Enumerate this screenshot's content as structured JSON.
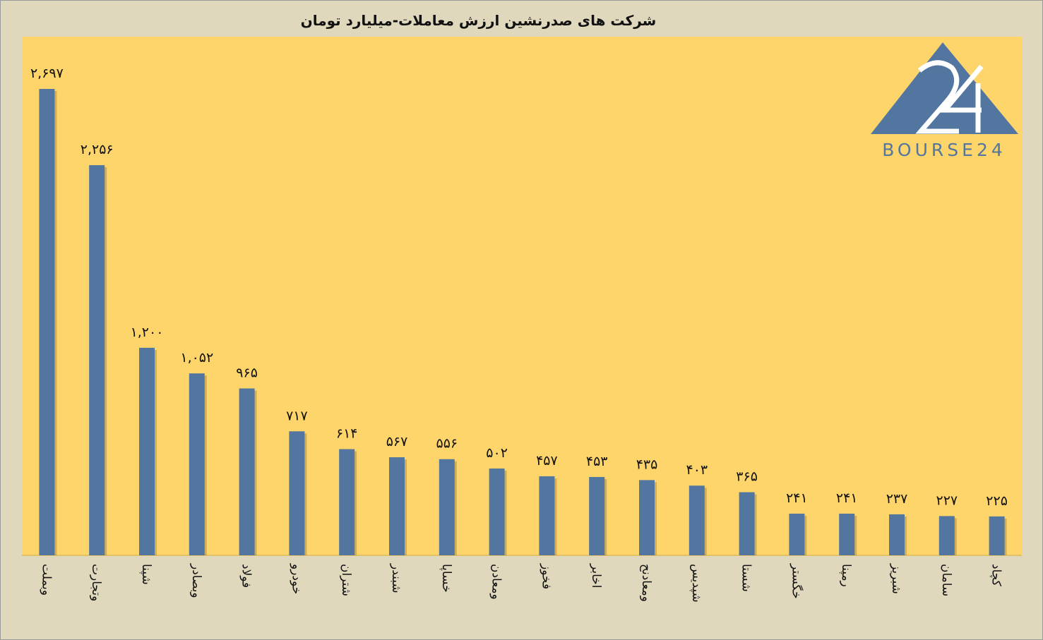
{
  "chart_data": {
    "type": "bar",
    "title": "شرکت های صدرنشین ارزش معاملات-میلیارد تومان",
    "categories": [
      "وبملت",
      "وتجارت",
      "شپنا",
      "وبصادر",
      "فولاد",
      "خودرو",
      "شتران",
      "شبندر",
      "خساپا",
      "ومعادن",
      "فخوز",
      "اخابر",
      "ومعادنح",
      "شپدیس",
      "شستا",
      "خگستر",
      "رمپنا",
      "شبریز",
      "سامان",
      "کچاد"
    ],
    "values": [
      2697,
      2256,
      1200,
      1052,
      965,
      717,
      614,
      567,
      556,
      502,
      457,
      453,
      435,
      403,
      365,
      241,
      241,
      237,
      227,
      225
    ],
    "value_labels": [
      "۲,۶۹۷",
      "۲,۲۵۶",
      "۱,۲۰۰",
      "۱,۰۵۲",
      "۹۶۵",
      "۷۱۷",
      "۶۱۴",
      "۵۶۷",
      "۵۵۶",
      "۵۰۲",
      "۴۵۷",
      "۴۵۳",
      "۴۳۵",
      "۴۰۳",
      "۳۶۵",
      "۲۴۱",
      "۲۴۱",
      "۲۳۷",
      "۲۲۷",
      "۲۲۵"
    ],
    "ylim": [
      0,
      2800
    ],
    "grid": false,
    "bar_color": "#52769f",
    "plot_background": "#fdd56b"
  },
  "logo": {
    "text": "BOURSE24",
    "number": "24",
    "color": "#52769f"
  }
}
